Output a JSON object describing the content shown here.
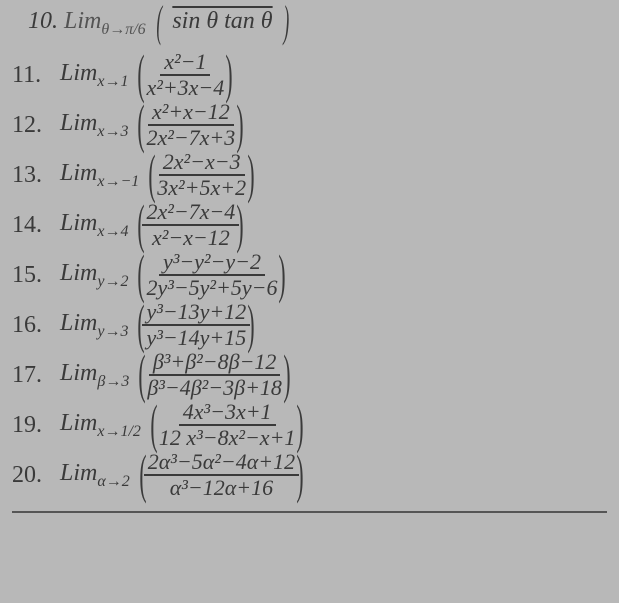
{
  "background_color": "#b8b8b8",
  "text_color": "#3a3a3a",
  "font_family": "Times New Roman, serif",
  "base_fontsize": 24,
  "subscript_fontsize": 16,
  "fraction_fontsize": 22,
  "truncated_top": {
    "number_fragment": "10.",
    "lim_var": "θ",
    "approach": "π/6",
    "denominator_fragment": "sin θ tan θ"
  },
  "problems": [
    {
      "n": "11.",
      "lim": "Lim",
      "var": "x",
      "approach": "1",
      "num": "x²−1",
      "den": "x²+3x−4"
    },
    {
      "n": "12.",
      "lim": "Lim",
      "var": "x",
      "approach": "3",
      "num": "x²+x−12",
      "den": "2x²−7x+3"
    },
    {
      "n": "13.",
      "lim": "Lim",
      "var": "x",
      "approach": "−1",
      "num": "2x²−x−3",
      "den": "3x²+5x+2"
    },
    {
      "n": "14.",
      "lim": "Lim",
      "var": "x",
      "approach": "4",
      "num": "2x²−7x−4",
      "den": "x²−x−12"
    },
    {
      "n": "15.",
      "lim": "Lim",
      "var": "y",
      "approach": "2",
      "num": "y³−y²−y−2",
      "den": "2y³−5y²+5y−6"
    },
    {
      "n": "16.",
      "lim": "Lim",
      "var": "y",
      "approach": "3",
      "num": "y³−13y+12",
      "den": "y³−14y+15"
    },
    {
      "n": "17.",
      "lim": "Lim",
      "var": "β",
      "approach": "3",
      "num": "β³+β²−8β−12",
      "den": "β³−4β²−3β+18"
    },
    {
      "n": "19.",
      "lim": "Lim",
      "var": "x",
      "approach": "1/2",
      "num": "4x³−3x+1",
      "den": "12 x³−8x²−x+1"
    },
    {
      "n": "20.",
      "lim": "Lim",
      "var": "α",
      "approach": "2",
      "num": "2α³−5α²−4α+12",
      "den": "α³−12α+16"
    }
  ]
}
